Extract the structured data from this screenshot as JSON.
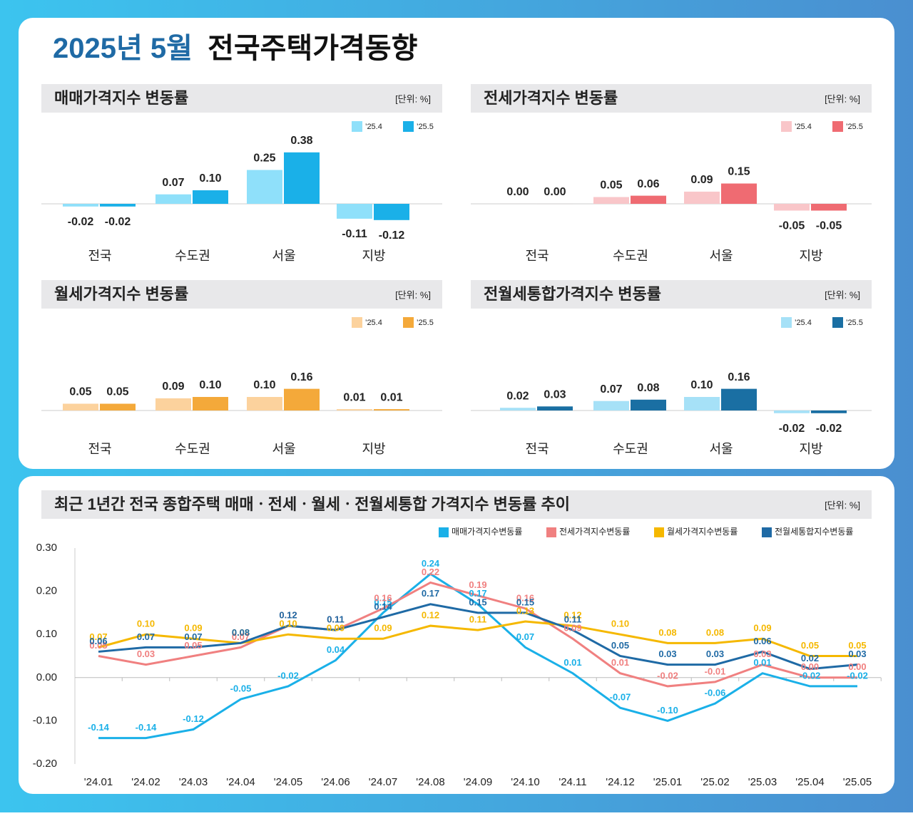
{
  "header": {
    "title_highlight": "2025년 5월",
    "title_rest": "전국주택가격동향"
  },
  "chart_data": [
    {
      "type": "bar",
      "title": "매매가격지수 변동률",
      "unit": "[단위: %]",
      "categories": [
        "전국",
        "수도권",
        "서울",
        "지방"
      ],
      "series": [
        {
          "name": "’25.4",
          "color": "#8fe0fa",
          "values": [
            -0.02,
            0.07,
            0.25,
            -0.11
          ],
          "value_labels": [
            "-0.02",
            "0.07",
            "0.25",
            "-0.11"
          ]
        },
        {
          "name": "’25.5",
          "color": "#1ab0e8",
          "values": [
            -0.02,
            0.1,
            0.38,
            -0.12
          ],
          "value_labels": [
            "-0.02",
            "0.10",
            "0.38",
            "-0.12"
          ]
        }
      ]
    },
    {
      "type": "bar",
      "title": "전세가격지수 변동률",
      "unit": "[단위: %]",
      "categories": [
        "전국",
        "수도권",
        "서울",
        "지방"
      ],
      "series": [
        {
          "name": "’25.4",
          "color": "#f9c6c9",
          "values": [
            0,
            0.05,
            0.09,
            -0.05
          ],
          "value_labels": [
            "0.00",
            "0.05",
            "0.09",
            "-0.05"
          ]
        },
        {
          "name": "’25.5",
          "color": "#ef6b72",
          "values": [
            0,
            0.06,
            0.15,
            -0.05
          ],
          "value_labels": [
            "0.00",
            "0.06",
            "0.15",
            "-0.05"
          ]
        }
      ]
    },
    {
      "type": "bar",
      "title": "월세가격지수 변동률",
      "unit": "[단위: %]",
      "categories": [
        "전국",
        "수도권",
        "서울",
        "지방"
      ],
      "series": [
        {
          "name": "’25.4",
          "color": "#fcd29d",
          "values": [
            0.05,
            0.09,
            0.1,
            0.01
          ],
          "value_labels": [
            "0.05",
            "0.09",
            "0.10",
            "0.01"
          ]
        },
        {
          "name": "’25.5",
          "color": "#f4a93a",
          "values": [
            0.05,
            0.1,
            0.16,
            0.01
          ],
          "value_labels": [
            "0.05",
            "0.10",
            "0.16",
            "0.01"
          ]
        }
      ]
    },
    {
      "type": "bar",
      "title": "전월세통합가격지수 변동률",
      "unit": "[단위: %]",
      "categories": [
        "전국",
        "수도권",
        "서울",
        "지방"
      ],
      "series": [
        {
          "name": "’25.4",
          "color": "#a6e1f7",
          "values": [
            0.02,
            0.07,
            0.1,
            -0.02
          ],
          "value_labels": [
            "0.02",
            "0.07",
            "0.10",
            "-0.02"
          ]
        },
        {
          "name": "’25.5",
          "color": "#1a6fa3",
          "values": [
            0.03,
            0.08,
            0.16,
            -0.02
          ],
          "value_labels": [
            "0.03",
            "0.08",
            "0.16",
            "-0.02"
          ]
        }
      ]
    },
    {
      "type": "line",
      "title": "최근 1년간 전국 종합주택 매매ㆍ전세ㆍ월세ㆍ전월세통합 가격지수 변동률 추이",
      "unit": "[단위: %]",
      "categories": [
        "'24.01",
        "'24.02",
        "'24.03",
        "'24.04",
        "'24.05",
        "'24.06",
        "'24.07",
        "'24.08",
        "'24.09",
        "'24.10",
        "'24.11",
        "'24.12",
        "'25.01",
        "'25.02",
        "'25.03",
        "'25.04",
        "'25.05"
      ],
      "ylim": [
        -0.2,
        0.3
      ],
      "yticks": [
        {
          "value": 0.3,
          "label": "0.30"
        },
        {
          "value": 0.2,
          "label": "0.20"
        },
        {
          "value": 0.1,
          "label": "0.10"
        },
        {
          "value": 0,
          "label": "0.00"
        },
        {
          "value": -0.1,
          "label": "-0.10"
        },
        {
          "value": -0.2,
          "label": "-0.20"
        }
      ],
      "series": [
        {
          "name": "매매가격지수변동률",
          "color": "#1ab0e8",
          "values": [
            -0.14,
            -0.14,
            -0.12,
            -0.05,
            -0.02,
            0.04,
            0.15,
            0.24,
            0.17,
            0.07,
            0.01,
            -0.07,
            -0.1,
            -0.06,
            0.01,
            -0.02,
            -0.02
          ],
          "value_labels": [
            "-0.14",
            "-0.14",
            "-0.12",
            "-0.05",
            "-0.02",
            "0.04",
            "0.15",
            "0.24",
            "0.17",
            "0.07",
            "0.01",
            "-0.07",
            "-0.10",
            "-0.06",
            "0.01",
            "-0.02",
            "-0.02"
          ]
        },
        {
          "name": "전세가격지수변동률",
          "color": "#f08080",
          "values": [
            0.05,
            0.03,
            0.05,
            0.07,
            0.12,
            0.11,
            0.16,
            0.22,
            0.19,
            0.16,
            0.09,
            0.01,
            -0.02,
            -0.01,
            0.03,
            0,
            0
          ],
          "value_labels": [
            "0.05",
            "0.03",
            "0.05",
            "0.07",
            "0.12",
            "0.11",
            "0.16",
            "0.22",
            "0.19",
            "0.16",
            "0.09",
            "0.01",
            "-0.02",
            "-0.01",
            "0.03",
            "0.00",
            "0.00"
          ]
        },
        {
          "name": "월세가격지수변동률",
          "color": "#f5b800",
          "values": [
            0.07,
            0.1,
            0.09,
            0.08,
            0.1,
            0.09,
            0.09,
            0.12,
            0.11,
            0.13,
            0.12,
            0.1,
            0.08,
            0.08,
            0.09,
            0.05,
            0.05
          ],
          "value_labels": [
            "0.07",
            "0.10",
            "0.09",
            "0.08",
            "0.10",
            "0.09",
            "0.09",
            "0.12",
            "0.11",
            "0.13",
            "0.12",
            "0.10",
            "0.08",
            "0.08",
            "0.09",
            "0.05",
            "0.05"
          ]
        },
        {
          "name": "전월세통합지수변동률",
          "color": "#1f6aa5",
          "values": [
            0.06,
            0.07,
            0.07,
            0.08,
            0.12,
            0.11,
            0.14,
            0.17,
            0.15,
            0.15,
            0.11,
            0.05,
            0.03,
            0.03,
            0.06,
            0.02,
            0.03
          ],
          "value_labels": [
            "0.06",
            "0.07",
            "0.07",
            "0.08",
            "0.12",
            "0.11",
            "0.14",
            "0.17",
            "0.15",
            "0.15",
            "0.11",
            "0.05",
            "0.03",
            "0.03",
            "0.06",
            "0.02",
            "0.03"
          ]
        }
      ]
    }
  ]
}
